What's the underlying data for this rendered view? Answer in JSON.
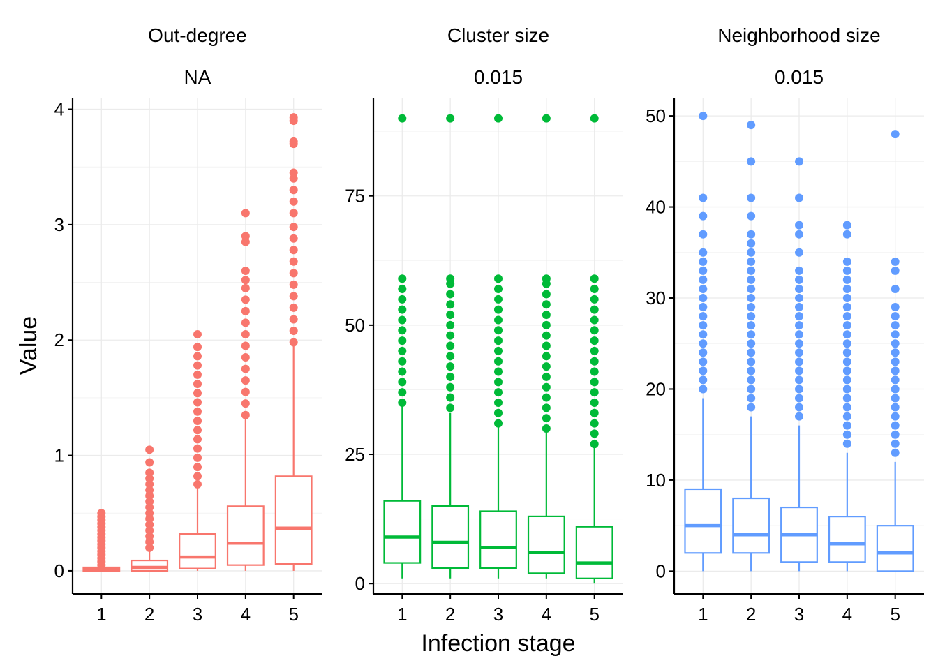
{
  "figure": {
    "xlabel": "Infection stage",
    "ylabel": "Value"
  },
  "chart_data": [
    {
      "type": "box",
      "title": "Out-degree",
      "subtitle": "NA",
      "color": "#F8766D",
      "categories": [
        "1",
        "2",
        "3",
        "4",
        "5"
      ],
      "xlabel": "Infection stage",
      "ylabel": "Value",
      "ylim": [
        -0.2,
        4.1
      ],
      "yticks": [
        0,
        1,
        2,
        3,
        4
      ],
      "ytick_labels": [
        "0",
        "1",
        "2",
        "3",
        "4"
      ],
      "boxes": [
        {
          "q1": 0.0,
          "median": 0.01,
          "q3": 0.03,
          "whisker_low": 0.0,
          "whisker_high": 0.03,
          "outliers": [
            0.05,
            0.08,
            0.11,
            0.14,
            0.17,
            0.2,
            0.23,
            0.26,
            0.29,
            0.32,
            0.35,
            0.38,
            0.41,
            0.44,
            0.47,
            0.5
          ]
        },
        {
          "q1": 0.0,
          "median": 0.03,
          "q3": 0.09,
          "whisker_low": 0.0,
          "whisker_high": 0.18,
          "outliers": [
            0.2,
            0.25,
            0.3,
            0.35,
            0.4,
            0.45,
            0.5,
            0.55,
            0.6,
            0.65,
            0.7,
            0.75,
            0.8,
            0.85,
            0.94,
            1.05
          ]
        },
        {
          "q1": 0.02,
          "median": 0.12,
          "q3": 0.32,
          "whisker_low": 0.0,
          "whisker_high": 0.73,
          "outliers": [
            0.75,
            0.82,
            0.9,
            0.98,
            1.06,
            1.14,
            1.22,
            1.3,
            1.38,
            1.46,
            1.54,
            1.62,
            1.7,
            1.78,
            1.86,
            1.94,
            2.05
          ]
        },
        {
          "q1": 0.05,
          "median": 0.24,
          "q3": 0.56,
          "whisker_low": 0.0,
          "whisker_high": 1.32,
          "outliers": [
            1.35,
            1.45,
            1.55,
            1.65,
            1.75,
            1.85,
            1.95,
            2.05,
            2.15,
            2.25,
            2.35,
            2.45,
            2.52,
            2.6,
            2.85,
            2.9,
            3.1
          ]
        },
        {
          "q1": 0.06,
          "median": 0.37,
          "q3": 0.82,
          "whisker_low": 0.0,
          "whisker_high": 1.95,
          "outliers": [
            1.98,
            2.08,
            2.18,
            2.28,
            2.38,
            2.48,
            2.58,
            2.68,
            2.78,
            2.88,
            2.98,
            3.1,
            3.2,
            3.3,
            3.4,
            3.45,
            3.7,
            3.72,
            3.9,
            3.93
          ]
        }
      ]
    },
    {
      "type": "box",
      "title": "Cluster size",
      "subtitle": "0.015",
      "color": "#00BA38",
      "categories": [
        "1",
        "2",
        "3",
        "4",
        "5"
      ],
      "xlabel": "Infection stage",
      "ylabel": "Value",
      "ylim": [
        -2,
        94
      ],
      "yticks": [
        0,
        25,
        50,
        75
      ],
      "ytick_labels": [
        "0",
        "25",
        "50",
        "75"
      ],
      "boxes": [
        {
          "q1": 4,
          "median": 9,
          "q3": 16,
          "whisker_low": 1,
          "whisker_high": 35,
          "outliers": [
            35,
            37,
            39,
            41,
            43,
            45,
            47,
            49,
            51,
            53,
            55,
            57,
            59,
            90
          ]
        },
        {
          "q1": 3,
          "median": 8,
          "q3": 15,
          "whisker_low": 1,
          "whisker_high": 33,
          "outliers": [
            34,
            36,
            38,
            40,
            42,
            44,
            46,
            48,
            50,
            52,
            54,
            56,
            58,
            59,
            90
          ]
        },
        {
          "q1": 3,
          "median": 7,
          "q3": 14,
          "whisker_low": 1,
          "whisker_high": 31,
          "outliers": [
            31,
            33,
            35,
            37,
            39,
            41,
            43,
            45,
            47,
            49,
            51,
            53,
            55,
            57,
            59,
            90
          ]
        },
        {
          "q1": 2,
          "median": 6,
          "q3": 13,
          "whisker_low": 1,
          "whisker_high": 30,
          "outliers": [
            30,
            32,
            34,
            36,
            38,
            40,
            42,
            44,
            46,
            48,
            50,
            52,
            54,
            56,
            58,
            59,
            90
          ]
        },
        {
          "q1": 1,
          "median": 4,
          "q3": 11,
          "whisker_low": 0,
          "whisker_high": 27,
          "outliers": [
            27,
            29,
            31,
            33,
            35,
            37,
            39,
            41,
            43,
            45,
            47,
            49,
            51,
            53,
            55,
            57,
            59,
            90
          ]
        }
      ]
    },
    {
      "type": "box",
      "title": "Neighborhood size",
      "subtitle": "0.015",
      "color": "#619CFF",
      "categories": [
        "1",
        "2",
        "3",
        "4",
        "5"
      ],
      "xlabel": "Infection stage",
      "ylabel": "Value",
      "ylim": [
        -2.5,
        52
      ],
      "yticks": [
        0,
        10,
        20,
        30,
        40,
        50
      ],
      "ytick_labels": [
        "0",
        "10",
        "20",
        "30",
        "40",
        "50"
      ],
      "boxes": [
        {
          "q1": 2,
          "median": 5,
          "q3": 9,
          "whisker_low": 0,
          "whisker_high": 19,
          "outliers": [
            20,
            21,
            22,
            23,
            24,
            25,
            26,
            27,
            28,
            29,
            30,
            31,
            32,
            33,
            34,
            35,
            37,
            39,
            41,
            50
          ]
        },
        {
          "q1": 2,
          "median": 4,
          "q3": 8,
          "whisker_low": 0,
          "whisker_high": 17,
          "outliers": [
            18,
            19,
            20,
            21,
            22,
            23,
            24,
            25,
            26,
            27,
            28,
            29,
            30,
            31,
            32,
            33,
            34,
            35,
            36,
            37,
            39,
            41,
            45,
            49
          ]
        },
        {
          "q1": 1,
          "median": 4,
          "q3": 7,
          "whisker_low": 0,
          "whisker_high": 16,
          "outliers": [
            17,
            18,
            19,
            20,
            21,
            22,
            23,
            24,
            25,
            26,
            27,
            28,
            29,
            30,
            31,
            32,
            33,
            35,
            37,
            38,
            41,
            45
          ]
        },
        {
          "q1": 1,
          "median": 3,
          "q3": 6,
          "whisker_low": 0,
          "whisker_high": 13,
          "outliers": [
            14,
            15,
            16,
            17,
            18,
            19,
            20,
            21,
            22,
            23,
            24,
            25,
            26,
            27,
            28,
            29,
            30,
            31,
            32,
            33,
            34,
            37,
            38
          ]
        },
        {
          "q1": 0,
          "median": 2,
          "q3": 5,
          "whisker_low": 0,
          "whisker_high": 12,
          "outliers": [
            13,
            14,
            15,
            16,
            17,
            18,
            19,
            20,
            21,
            22,
            23,
            24,
            25,
            26,
            27,
            28,
            29,
            31,
            33,
            34,
            48
          ]
        }
      ]
    }
  ]
}
